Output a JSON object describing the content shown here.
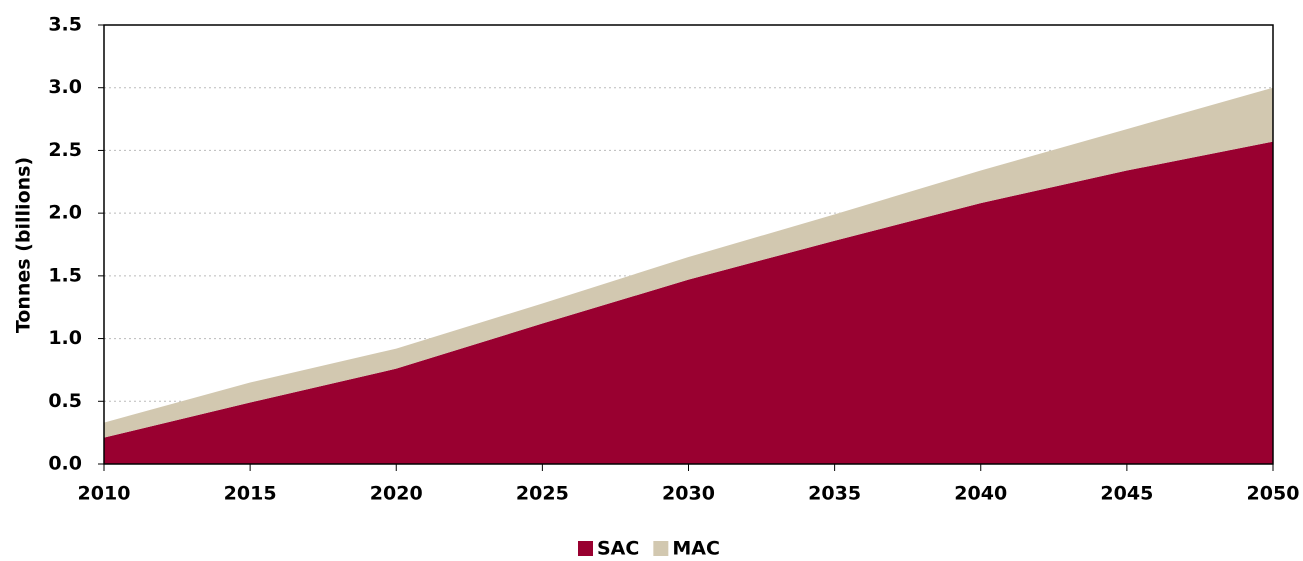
{
  "chart_data": {
    "type": "stacked_area",
    "y_label": "Tonnes (billions)",
    "x": [
      2010,
      2015,
      2020,
      2025,
      2030,
      2035,
      2040,
      2045,
      2050
    ],
    "series": [
      {
        "name": "SAC",
        "color": "#990030",
        "values": [
          0.21,
          0.49,
          0.76,
          1.12,
          1.47,
          1.78,
          2.08,
          2.34,
          2.57
        ]
      },
      {
        "name": "MAC",
        "color": "#d2c8b0",
        "values": [
          0.12,
          0.16,
          0.16,
          0.16,
          0.18,
          0.21,
          0.26,
          0.33,
          0.43
        ]
      }
    ],
    "xlim": [
      2010,
      2050
    ],
    "xticks": [
      2010,
      2015,
      2020,
      2025,
      2030,
      2035,
      2040,
      2045,
      2050
    ],
    "ylim": [
      0,
      3.5
    ],
    "yticks": [
      {
        "value": 0,
        "label": "0.0"
      },
      0.5,
      {
        "value": 1,
        "label": "1.0"
      },
      1.5,
      {
        "value": 2,
        "label": "2.0"
      },
      2.5,
      {
        "value": 3,
        "label": "3.0"
      },
      3.5
    ],
    "grid": true,
    "legend": "bottom"
  }
}
